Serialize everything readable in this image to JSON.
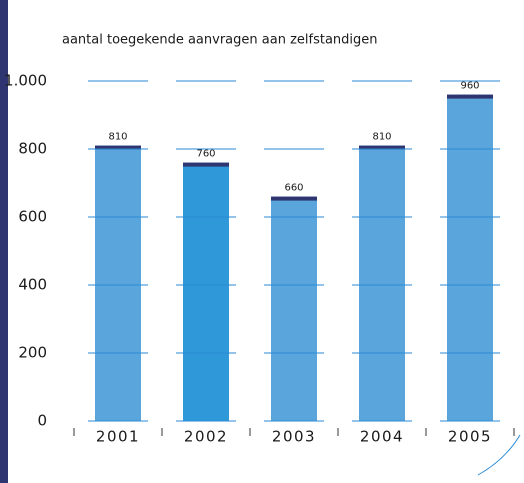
{
  "chart_data": {
    "type": "bar",
    "title": "aantal toegekende aanvragen aan zelfstandigen",
    "categories": [
      "2001",
      "2002",
      "2003",
      "2004",
      "2005"
    ],
    "values": [
      810,
      760,
      660,
      810,
      960
    ],
    "colors": [
      "#5aa5dc",
      "#2f98d9",
      "#5aa5dc",
      "#5aa5dc",
      "#5aa5dc"
    ],
    "cap_color": "#2e3570",
    "ylim": [
      0,
      1000
    ],
    "yticks": [
      0,
      200,
      400,
      600,
      800,
      {
        "value": 1000,
        "label": "1.000"
      }
    ],
    "grid": true
  }
}
